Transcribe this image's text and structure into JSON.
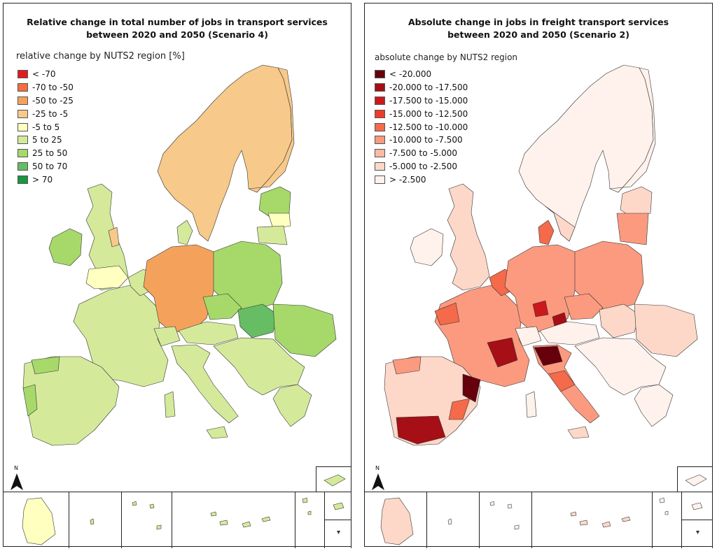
{
  "maps": [
    {
      "title_line1": "Relative change in total number of jobs in transport services",
      "title_line2": "between 2020 and 2050 (Scenario 4)",
      "legend_title": "relative change by NUTS2 region [%]",
      "legend": [
        {
          "label": "< -70",
          "color": "#e31a1c"
        },
        {
          "label": "-70 to -50",
          "color": "#f46d43"
        },
        {
          "label": "-50 to -25",
          "color": "#f4a25b"
        },
        {
          "label": "-25 to -5",
          "color": "#f7c98a"
        },
        {
          "label": "-5 to 5",
          "color": "#ffffbf"
        },
        {
          "label": "5 to 25",
          "color": "#d4ea9a"
        },
        {
          "label": "25 to 50",
          "color": "#a6d96a"
        },
        {
          "label": "50 to 70",
          "color": "#66bd63"
        },
        {
          "label": "> 70",
          "color": "#1a9641"
        }
      ],
      "north_label": "N"
    },
    {
      "title_line1": "Absolute change in jobs in freight transport services",
      "title_line2": "between 2020 and 2050 (Scenario 2)",
      "legend_title": "absolute change by NUTS2 region",
      "legend": [
        {
          "label": "< -20.000",
          "color": "#67000d"
        },
        {
          "label": "-20.000 to -17.500",
          "color": "#a50f15"
        },
        {
          "label": "-17.500 to -15.000",
          "color": "#cb181d"
        },
        {
          "label": "-15.000 to -12.500",
          "color": "#ef3b2c"
        },
        {
          "label": "-12.500 to -10.000",
          "color": "#f46a4a"
        },
        {
          "label": "-10.000 to -7.500",
          "color": "#fb9a7f"
        },
        {
          "label": "-7.500 to -5.000",
          "color": "#fcbba1"
        },
        {
          "label": "-5.000 to -2.500",
          "color": "#fdd8c9"
        },
        {
          "label": "> -2.500",
          "color": "#fff2ec"
        }
      ],
      "north_label": "N"
    }
  ],
  "colors": {
    "left_base": "#d4ea9a",
    "left_scandinavia": "#f7c98a",
    "left_germany": "#f4a25b",
    "left_green": "#a6d96a",
    "left_darkgreen": "#66bd63",
    "left_yellow": "#ffffbf",
    "right_base": "#fdd8c9",
    "right_light": "#fff2ec",
    "right_mid": "#fb9a7f",
    "right_strong": "#f46a4a",
    "right_red": "#cb181d",
    "right_dark": "#a50f15",
    "right_darkest": "#67000d",
    "border": "#333333"
  }
}
